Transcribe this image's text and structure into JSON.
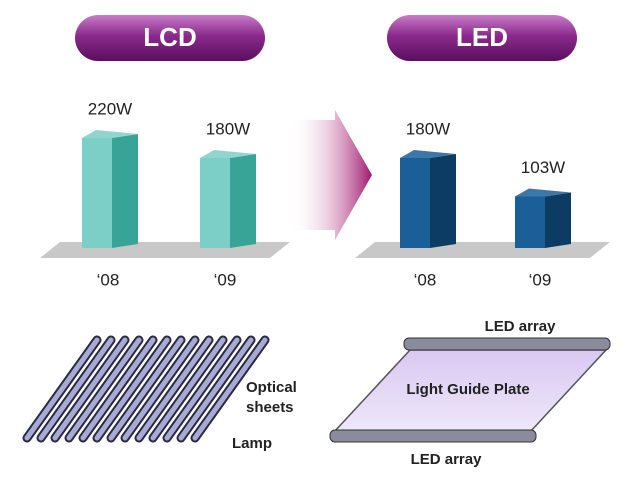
{
  "chart_data": [
    {
      "type": "bar",
      "title": "LCD",
      "categories": [
        "‘08",
        "‘09"
      ],
      "values": [
        220,
        180
      ],
      "value_labels": [
        "220W",
        "180W"
      ],
      "color": "#7ccfc6",
      "side_color": "#37a497"
    },
    {
      "type": "bar",
      "title": "LED",
      "categories": [
        "‘08",
        "‘09"
      ],
      "values": [
        180,
        103
      ],
      "value_labels": [
        "180W",
        "103W"
      ],
      "color": "#1b5f98",
      "side_color": "#0c3b63"
    }
  ],
  "diagrams": {
    "lcd": {
      "labels": [
        "Optical",
        "sheets",
        "Lamp"
      ]
    },
    "led": {
      "labels": [
        "LED array",
        "Light Guide Plate",
        "LED array"
      ]
    }
  }
}
